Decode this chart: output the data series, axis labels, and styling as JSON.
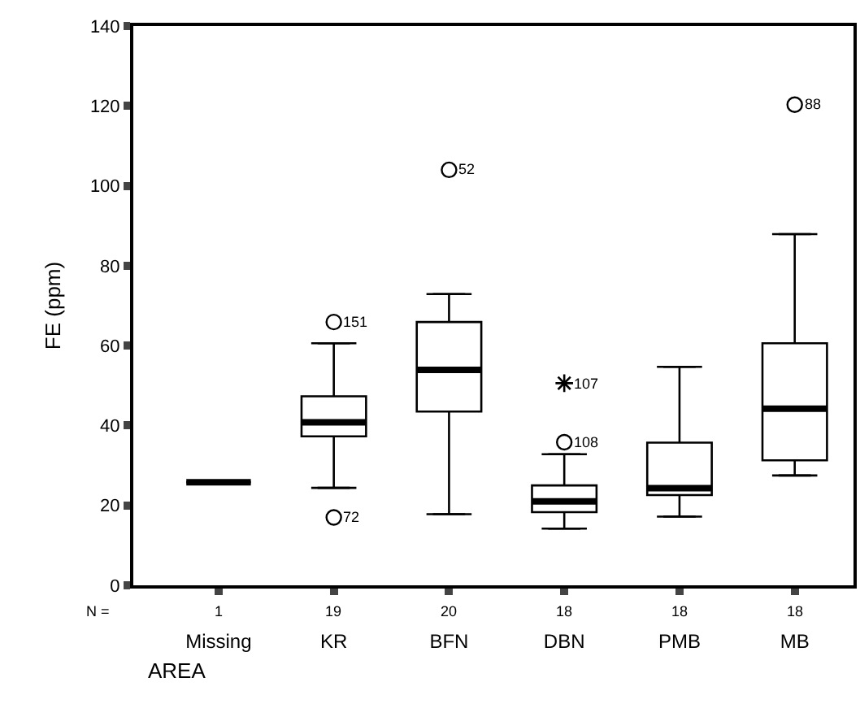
{
  "chart_data": {
    "type": "box",
    "xlabel": "AREA",
    "ylabel": "FE (ppm)",
    "categories": [
      "Missing",
      "KR",
      "BFN",
      "DBN",
      "PMB",
      "MB"
    ],
    "color": "#000000",
    "ylim": [
      0,
      140
    ],
    "yticks": [
      0,
      20,
      40,
      60,
      80,
      100,
      120,
      140
    ],
    "boxes": [
      {
        "low": 25.8,
        "q1": 25.8,
        "median": 25.8,
        "q3": 25.8,
        "high": 25.8
      },
      {
        "low": 24.4,
        "q1": 37.3,
        "median": 40.8,
        "q3": 47.3,
        "high": 60.6,
        "outliers": [
          65.9,
          17
        ]
      },
      {
        "low": 17.8,
        "q1": 43.5,
        "median": 53.9,
        "q3": 65.9,
        "high": 72.9,
        "outliers": [
          104
        ]
      },
      {
        "low": 14.2,
        "q1": 18.3,
        "median": 21,
        "q3": 25,
        "high": 32.8,
        "outliers": [
          35.8
        ]
      },
      {
        "low": 17.2,
        "q1": 22.6,
        "median": 24.3,
        "q3": 35.7,
        "high": 54.7
      },
      {
        "low": 27.5,
        "q1": 31.3,
        "median": 44.2,
        "q3": 60.6,
        "high": 87.9,
        "outliers": [
          120.3
        ]
      }
    ],
    "series": [
      {
        "type": "scatter",
        "marker": "cross",
        "color": "#000000",
        "x": [
          "DBN"
        ],
        "values": [
          50.6
        ]
      }
    ],
    "annotations": [
      "151",
      "72",
      "52",
      "108",
      "88",
      "107",
      "N =",
      "1",
      "19",
      "20",
      "18",
      "18",
      "18"
    ]
  }
}
